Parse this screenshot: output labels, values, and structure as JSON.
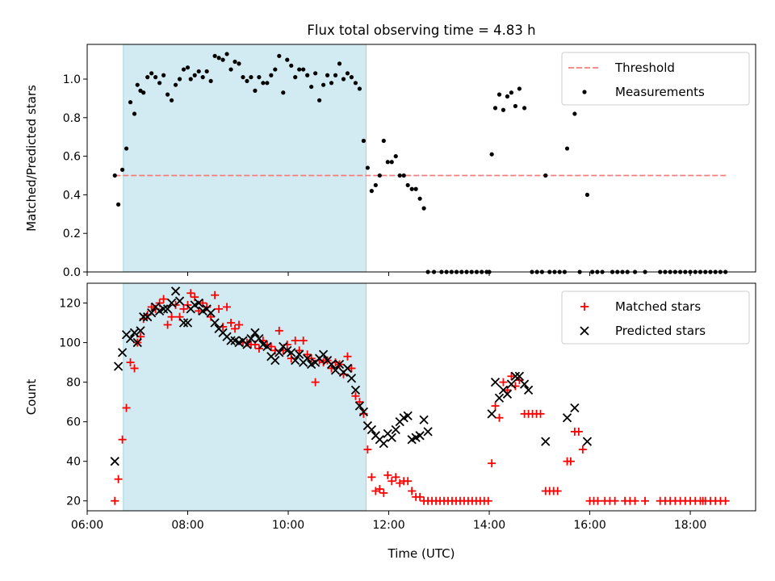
{
  "title": "Flux total observing time = 4.83 h",
  "colors": {
    "threshold": "#f08080",
    "measurement": "#000000",
    "matched": "#ff0000",
    "predicted": "#000000",
    "span": "#add8e6"
  },
  "chart_data": [
    {
      "type": "scatter",
      "ylabel": "Matched/Predicted stars",
      "ylim": [
        0,
        1.18
      ],
      "yticks": [
        "0.0",
        "0.2",
        "0.4",
        "0.6",
        "0.8",
        "1.0"
      ],
      "xlim": [
        6.0,
        19.3
      ],
      "shaded_span": [
        6.72,
        11.55
      ],
      "legend_position": "top-right",
      "legend": [
        "Threshold",
        "Measurements"
      ],
      "threshold": {
        "name": "Threshold",
        "value": 0.5,
        "x": [
          6.55,
          18.75
        ]
      },
      "series": [
        {
          "name": "Measurements",
          "marker": "dot",
          "x": [
            6.55,
            6.62,
            6.7,
            6.78,
            6.86,
            6.94,
            7.0,
            7.06,
            7.12,
            7.2,
            7.28,
            7.36,
            7.44,
            7.52,
            7.6,
            7.68,
            7.76,
            7.84,
            7.92,
            8.0,
            8.06,
            8.14,
            8.22,
            8.3,
            8.38,
            8.46,
            8.54,
            8.62,
            8.7,
            8.78,
            8.86,
            8.94,
            9.02,
            9.1,
            9.18,
            9.26,
            9.34,
            9.42,
            9.5,
            9.58,
            9.66,
            9.74,
            9.82,
            9.9,
            9.98,
            10.06,
            10.14,
            10.22,
            10.3,
            10.38,
            10.46,
            10.54,
            10.62,
            10.7,
            10.78,
            10.86,
            10.94,
            11.02,
            11.1,
            11.18,
            11.26,
            11.34,
            11.42,
            11.5,
            11.58,
            11.66,
            11.74,
            11.82,
            11.9,
            11.98,
            12.06,
            12.14,
            12.22,
            12.3,
            12.38,
            12.46,
            12.54,
            12.62,
            12.7,
            12.78,
            14.05,
            14.12,
            14.2,
            14.28,
            14.36,
            14.44,
            14.52,
            14.6,
            14.7,
            15.12,
            15.55,
            15.7,
            15.95,
            12.9,
            13.05,
            13.15,
            13.25,
            13.35,
            13.45,
            13.55,
            13.65,
            13.75,
            13.85,
            13.95,
            14.0,
            14.85,
            14.95,
            15.05,
            15.2,
            15.3,
            15.4,
            15.5,
            15.8,
            16.05,
            16.15,
            16.25,
            16.45,
            16.55,
            16.65,
            16.75,
            16.9,
            17.1,
            17.4,
            17.5,
            17.6,
            17.7,
            17.8,
            17.9,
            18.0,
            18.1,
            18.2,
            18.3,
            18.4,
            18.5,
            18.6,
            18.7
          ],
          "values": [
            0.5,
            0.35,
            0.53,
            0.64,
            0.88,
            0.82,
            0.97,
            0.94,
            0.93,
            1.01,
            1.03,
            1.01,
            0.98,
            1.02,
            0.92,
            0.89,
            0.97,
            1.0,
            1.05,
            1.06,
            1.0,
            1.02,
            1.04,
            1.01,
            1.04,
            0.99,
            1.12,
            1.11,
            1.1,
            1.13,
            1.05,
            1.09,
            1.08,
            1.01,
            0.99,
            1.01,
            0.94,
            1.01,
            0.98,
            0.98,
            1.02,
            1.05,
            1.12,
            0.93,
            1.1,
            1.07,
            1.01,
            1.05,
            1.05,
            1.02,
            0.96,
            1.03,
            0.89,
            0.97,
            1.02,
            0.98,
            1.02,
            1.08,
            1.0,
            1.03,
            1.01,
            0.98,
            0.95,
            0.68,
            0.54,
            0.42,
            0.45,
            0.5,
            0.68,
            0.57,
            0.57,
            0.6,
            0.5,
            0.5,
            0.45,
            0.43,
            0.43,
            0.38,
            0.33,
            0.0,
            0.61,
            0.85,
            0.92,
            0.84,
            0.91,
            0.93,
            0.86,
            0.95,
            0.85,
            0.5,
            0.64,
            0.82,
            0.4,
            0.0,
            0.0,
            0.0,
            0.0,
            0.0,
            0.0,
            0.0,
            0.0,
            0.0,
            0.0,
            0.0,
            0.0,
            0.0,
            0.0,
            0.0,
            0.0,
            0.0,
            0.0,
            0.0,
            0.0,
            0.0,
            0.0,
            0.0,
            0.0,
            0.0,
            0.0,
            0.0,
            0.0,
            0.0,
            0.0,
            0.0,
            0.0,
            0.0,
            0.0,
            0.0,
            0.0,
            0.0,
            0.0,
            0.0,
            0.0,
            0.0,
            0.0,
            0.0
          ]
        }
      ]
    },
    {
      "type": "scatter",
      "xlabel": "Time (UTC)",
      "ylabel": "Count",
      "ylim": [
        15,
        130
      ],
      "yticks": [
        "20",
        "40",
        "60",
        "80",
        "100",
        "120"
      ],
      "xlim": [
        6.0,
        19.3
      ],
      "xticks": [
        "06:00",
        "08:00",
        "10:00",
        "12:00",
        "14:00",
        "16:00",
        "18:00"
      ],
      "xtick_values": [
        6,
        8,
        10,
        12,
        14,
        16,
        18
      ],
      "shaded_span": [
        6.72,
        11.55
      ],
      "legend_position": "top-right",
      "legend": [
        "Matched stars",
        "Predicted stars"
      ],
      "series": [
        {
          "name": "Matched stars",
          "marker": "plus",
          "x": [
            6.55,
            6.62,
            6.7,
            6.78,
            6.86,
            6.94,
            7.0,
            7.06,
            7.12,
            7.2,
            7.28,
            7.36,
            7.44,
            7.52,
            7.6,
            7.68,
            7.76,
            7.84,
            7.92,
            8.0,
            8.06,
            8.14,
            8.22,
            8.3,
            8.38,
            8.46,
            8.54,
            8.62,
            8.7,
            8.78,
            8.86,
            8.94,
            9.02,
            9.1,
            9.18,
            9.26,
            9.34,
            9.42,
            9.5,
            9.58,
            9.66,
            9.74,
            9.82,
            9.9,
            9.98,
            10.06,
            10.14,
            10.22,
            10.3,
            10.38,
            10.46,
            10.54,
            10.62,
            10.7,
            10.78,
            10.86,
            10.94,
            11.02,
            11.1,
            11.18,
            11.26,
            11.34,
            11.42,
            11.5,
            11.58,
            11.66,
            11.74,
            11.82,
            11.9,
            11.98,
            12.06,
            12.14,
            12.22,
            12.3,
            12.38,
            12.46,
            12.54,
            12.62,
            12.7,
            12.78,
            12.86,
            12.94,
            13.02,
            13.1,
            13.18,
            13.26,
            13.34,
            13.42,
            13.5,
            13.58,
            13.66,
            13.74,
            13.82,
            13.9,
            13.98,
            14.05,
            14.12,
            14.2,
            14.28,
            14.36,
            14.44,
            14.52,
            14.6,
            14.7,
            14.78,
            14.86,
            14.94,
            15.02,
            15.12,
            15.2,
            15.28,
            15.36,
            15.55,
            15.62,
            15.7,
            15.78,
            15.86,
            16.0,
            16.08,
            16.16,
            16.3,
            16.4,
            16.5,
            16.7,
            16.8,
            16.9,
            17.1,
            17.4,
            17.5,
            17.6,
            17.7,
            17.8,
            17.9,
            18.0,
            18.1,
            18.2,
            18.25,
            18.3,
            18.4,
            18.5,
            18.6,
            18.7
          ],
          "values": [
            20,
            31,
            51,
            67,
            90,
            87,
            100,
            103,
            112,
            114,
            118,
            117,
            120,
            122,
            109,
            113,
            119,
            113,
            117,
            119,
            125,
            123,
            116,
            120,
            118,
            113,
            124,
            117,
            108,
            118,
            110,
            107,
            109,
            100,
            100,
            99,
            99,
            97,
            101,
            99,
            98,
            96,
            106,
            96,
            99,
            92,
            101,
            96,
            101,
            94,
            92,
            80,
            91,
            90,
            91,
            87,
            90,
            89,
            84,
            93,
            87,
            73,
            70,
            64,
            46,
            32,
            25,
            26,
            24,
            33,
            30,
            32,
            29,
            30,
            30,
            25,
            22,
            22,
            20,
            20,
            20,
            20,
            20,
            20,
            20,
            20,
            20,
            20,
            20,
            20,
            20,
            20,
            20,
            20,
            20,
            39,
            68,
            62,
            80,
            76,
            83,
            78,
            81,
            64,
            64,
            64,
            64,
            64,
            25,
            25,
            25,
            25,
            40,
            40,
            55,
            55,
            46,
            20,
            20,
            20,
            20,
            20,
            20,
            20,
            20,
            20,
            20,
            20,
            20,
            20,
            20,
            20,
            20,
            20,
            20,
            20,
            20,
            20,
            20,
            20,
            20,
            20
          ]
        },
        {
          "name": "Predicted stars",
          "marker": "x",
          "x": [
            6.55,
            6.62,
            6.7,
            6.78,
            6.86,
            6.94,
            7.0,
            7.06,
            7.12,
            7.2,
            7.28,
            7.36,
            7.44,
            7.52,
            7.6,
            7.68,
            7.76,
            7.84,
            7.92,
            8.0,
            8.06,
            8.14,
            8.22,
            8.3,
            8.38,
            8.46,
            8.54,
            8.62,
            8.7,
            8.78,
            8.86,
            8.94,
            9.02,
            9.1,
            9.18,
            9.26,
            9.34,
            9.42,
            9.5,
            9.58,
            9.66,
            9.74,
            9.82,
            9.9,
            9.98,
            10.06,
            10.14,
            10.22,
            10.3,
            10.38,
            10.46,
            10.54,
            10.62,
            10.7,
            10.78,
            10.86,
            10.94,
            11.02,
            11.1,
            11.18,
            11.26,
            11.34,
            11.42,
            11.5,
            11.58,
            11.66,
            11.74,
            11.82,
            11.9,
            11.98,
            12.06,
            12.14,
            12.22,
            12.3,
            12.38,
            12.46,
            12.54,
            12.62,
            12.7,
            12.78,
            14.05,
            14.12,
            14.2,
            14.28,
            14.36,
            14.44,
            14.52,
            14.6,
            14.7,
            14.78,
            15.12,
            15.55,
            15.7,
            15.95
          ],
          "values": [
            40,
            88,
            95,
            104,
            102,
            105,
            100,
            106,
            113,
            113,
            115,
            118,
            116,
            117,
            117,
            120,
            126,
            121,
            110,
            110,
            117,
            119,
            120,
            116,
            117,
            115,
            110,
            107,
            105,
            103,
            101,
            101,
            100,
            101,
            99,
            102,
            105,
            102,
            99,
            98,
            93,
            91,
            95,
            98,
            96,
            95,
            91,
            94,
            90,
            92,
            89,
            90,
            92,
            94,
            91,
            89,
            86,
            89,
            85,
            87,
            82,
            76,
            68,
            65,
            58,
            56,
            53,
            51,
            49,
            54,
            52,
            56,
            60,
            62,
            63,
            51,
            52,
            53,
            61,
            55,
            64,
            80,
            72,
            76,
            74,
            79,
            83,
            83,
            79,
            76,
            50,
            62,
            67,
            50
          ]
        }
      ]
    }
  ]
}
